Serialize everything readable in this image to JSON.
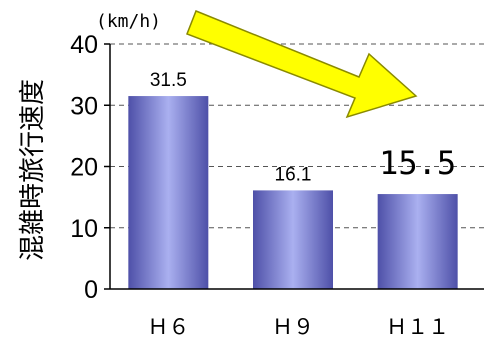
{
  "chart_data": {
    "type": "bar",
    "categories": [
      "Ｈ６",
      "Ｈ９",
      "Ｈ１１"
    ],
    "values": [
      31.5,
      16.1,
      15.5
    ],
    "data_labels": [
      "31.5",
      "16.1",
      "15.5"
    ],
    "emphasized_label_index": 2,
    "ylabel": "混雑時旅行速度",
    "unit": "(km/h)",
    "ylim": [
      0,
      40
    ],
    "yticks": [
      0,
      10,
      20,
      30,
      40
    ],
    "ytick_labels": [
      "0",
      "10",
      "20",
      "30",
      "40"
    ],
    "grid": true,
    "grid_style": "dashed",
    "legend": "none",
    "annotation": "decreasing trend arrow",
    "colors": {
      "bar_center": "#aab0f0",
      "bar_edge": "#4e50a8",
      "arrow_fill": "#ffff00",
      "arrow_stroke": "#8a8a00",
      "grid": "#555555",
      "axis": "#000000"
    }
  }
}
